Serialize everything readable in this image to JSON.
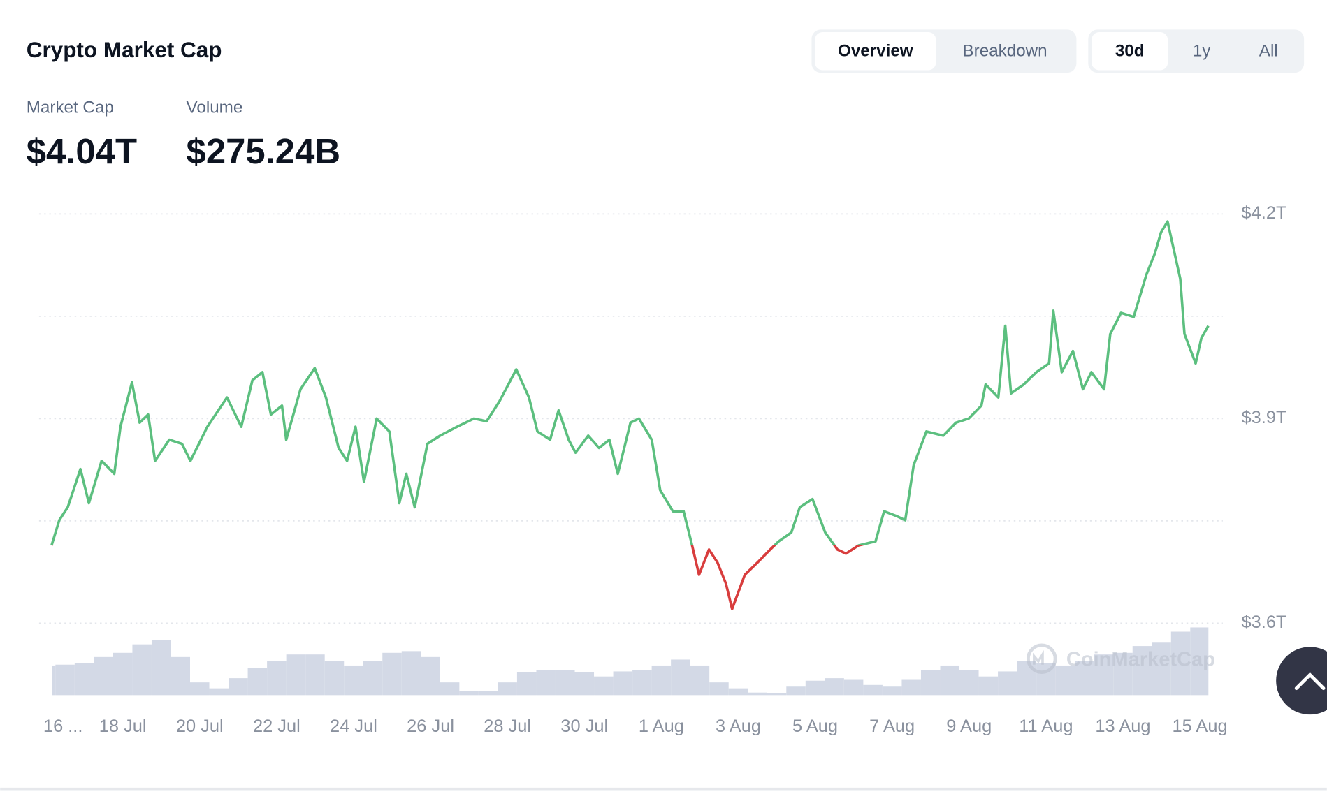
{
  "header": {
    "title": "Crypto Market Cap"
  },
  "view_tabs": [
    "Overview",
    "Breakdown"
  ],
  "view_selected": 0,
  "range_tabs": [
    "30d",
    "1y",
    "All"
  ],
  "range_selected": 0,
  "stats": [
    {
      "label": "Market Cap",
      "value": "$4.04T"
    },
    {
      "label": "Volume",
      "value": "$275.24B"
    }
  ],
  "watermark": "CoinMarketCap",
  "chart_data": {
    "type": "line",
    "x": [
      0.15,
      0.35,
      0.57,
      0.9,
      1.12,
      1.45,
      1.78,
      1.94,
      2.24,
      2.44,
      2.66,
      2.84,
      3.21,
      3.54,
      3.76,
      4.2,
      4.71,
      5.08,
      5.37,
      5.63,
      5.85,
      6.14,
      6.25,
      6.62,
      6.99,
      7.28,
      7.61,
      7.83,
      8.05,
      8.27,
      8.6,
      8.93,
      9.19,
      9.37,
      9.59,
      9.92,
      10.25,
      10.69,
      11.13,
      11.46,
      11.79,
      12.23,
      12.56,
      12.78,
      13.11,
      13.33,
      13.59,
      13.77,
      14.1,
      14.38,
      14.65,
      14.87,
      15.2,
      15.42,
      15.75,
      15.97,
      16.3,
      16.58,
      16.8,
      16.98,
      17.24,
      17.46,
      17.68,
      17.84,
      18.17,
      18.5,
      18.83,
      19.05,
      19.38,
      19.6,
      19.93,
      20.26,
      20.58,
      20.8,
      21.13,
      21.57,
      21.79,
      22.12,
      22.34,
      22.56,
      22.89,
      23.33,
      23.66,
      23.99,
      24.32,
      24.43,
      24.76,
      24.94,
      25.09,
      25.42,
      25.75,
      26.08,
      26.19,
      26.41,
      26.7,
      26.96,
      27.18,
      27.51,
      27.67,
      27.95,
      28.28,
      28.61,
      28.83,
      28.99,
      29.16,
      29.49,
      29.6,
      29.89,
      30.04,
      30.22
    ],
    "values": [
      3.714,
      3.751,
      3.77,
      3.826,
      3.776,
      3.838,
      3.819,
      3.888,
      3.953,
      3.894,
      3.906,
      3.838,
      3.869,
      3.863,
      3.838,
      3.888,
      3.931,
      3.888,
      3.956,
      3.968,
      3.906,
      3.919,
      3.869,
      3.943,
      3.974,
      3.931,
      3.857,
      3.838,
      3.888,
      3.807,
      3.9,
      3.881,
      3.776,
      3.819,
      3.77,
      3.863,
      3.875,
      3.888,
      3.9,
      3.896,
      3.925,
      3.972,
      3.931,
      3.881,
      3.869,
      3.912,
      3.869,
      3.85,
      3.875,
      3.857,
      3.869,
      3.819,
      3.894,
      3.9,
      3.869,
      3.795,
      3.764,
      3.764,
      3.714,
      3.671,
      3.708,
      3.689,
      3.658,
      3.621,
      3.671,
      3.689,
      3.708,
      3.72,
      3.733,
      3.77,
      3.782,
      3.733,
      3.708,
      3.702,
      3.714,
      3.72,
      3.764,
      3.757,
      3.751,
      3.832,
      3.881,
      3.875,
      3.894,
      3.9,
      3.919,
      3.95,
      3.931,
      4.036,
      3.937,
      3.95,
      3.968,
      3.981,
      4.058,
      3.968,
      3.999,
      3.943,
      3.968,
      3.943,
      4.024,
      4.055,
      4.049,
      4.111,
      4.142,
      4.173,
      4.189,
      4.105,
      4.024,
      3.981,
      4.018,
      4.036
    ],
    "up_color": "#5cbf7f",
    "down_color": "#d83d3d",
    "xlim": [
      0,
      30.2
    ],
    "xticks": [
      {
        "value": 0,
        "label": "16 ..."
      },
      {
        "value": 2,
        "label": "18 Jul"
      },
      {
        "value": 4,
        "label": "20 Jul"
      },
      {
        "value": 6,
        "label": "22 Jul"
      },
      {
        "value": 8,
        "label": "24 Jul"
      },
      {
        "value": 10,
        "label": "26 Jul"
      },
      {
        "value": 12,
        "label": "28 Jul"
      },
      {
        "value": 14,
        "label": "30 Jul"
      },
      {
        "value": 16,
        "label": "1 Aug"
      },
      {
        "value": 18,
        "label": "3 Aug"
      },
      {
        "value": 20,
        "label": "5 Aug"
      },
      {
        "value": 22,
        "label": "7 Aug"
      },
      {
        "value": 24,
        "label": "9 Aug"
      },
      {
        "value": 26,
        "label": "11 Aug"
      },
      {
        "value": 28,
        "label": "13 Aug"
      },
      {
        "value": 30,
        "label": "15 Aug"
      }
    ],
    "ylim": [
      3.6,
      4.2
    ],
    "yticks": [
      {
        "value": 4.2,
        "label": "$4.2T"
      },
      {
        "value": 3.9,
        "label": "$3.9T"
      },
      {
        "value": 3.6,
        "label": "$3.6T"
      }
    ],
    "ygrid": [
      3.6,
      3.75,
      3.9,
      4.05,
      4.2
    ],
    "volume": {
      "color": "#d3d9e6",
      "lim": [
        0,
        100
      ],
      "x": [
        0,
        0.5,
        1,
        1.5,
        2,
        2.5,
        3,
        3.5,
        4,
        4.5,
        5,
        5.5,
        6,
        6.5,
        7,
        7.5,
        8,
        8.5,
        9,
        9.5,
        10,
        10.5,
        11,
        11.5,
        12,
        12.5,
        13,
        13.5,
        14,
        14.5,
        15,
        15.5,
        16,
        16.5,
        17,
        17.5,
        18,
        18.5,
        19,
        19.5,
        20,
        20.5,
        21,
        21.5,
        22,
        22.5,
        23,
        23.5,
        24,
        24.5,
        25,
        25.5,
        26,
        26.5,
        27,
        27.5,
        28,
        28.5,
        29,
        29.5,
        30
      ],
      "values": [
        35,
        36,
        38,
        45,
        50,
        60,
        65,
        45,
        15,
        8,
        20,
        32,
        40,
        48,
        48,
        40,
        35,
        40,
        50,
        52,
        45,
        15,
        5,
        5,
        15,
        27,
        30,
        30,
        27,
        22,
        28,
        30,
        35,
        42,
        35,
        15,
        8,
        3,
        2,
        10,
        17,
        20,
        18,
        12,
        10,
        18,
        30,
        35,
        30,
        22,
        28,
        40,
        38,
        35,
        40,
        48,
        50,
        58,
        62,
        75,
        80
      ]
    }
  }
}
